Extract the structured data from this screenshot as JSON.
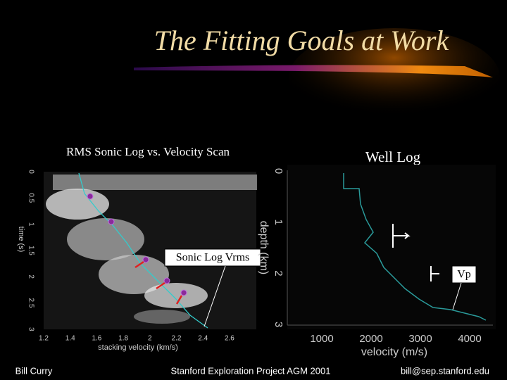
{
  "title": "The Fitting Goals at Work",
  "left_panel": {
    "caption": "RMS Sonic Log vs. Velocity Scan",
    "ylabel": "time (s)",
    "yticks": [
      "0",
      "0.5",
      "1",
      "1.5",
      "2",
      "2.5",
      "3"
    ],
    "xticks": [
      "1.2",
      "1.4",
      "1.6",
      "1.8",
      "2",
      "2.2",
      "2.4",
      "2.6"
    ],
    "xlabel": "stacking velocity (km/s)",
    "callout": "Sonic Log Vrms"
  },
  "right_panel": {
    "caption": "Well Log",
    "ylabel": "depth (km)",
    "yticks": [
      "0",
      "1",
      "2",
      "3"
    ],
    "xticks": [
      "1000",
      "2000",
      "3000",
      "4000"
    ],
    "xlabel": "velocity (m/s)",
    "callout": "Vp"
  },
  "footer": {
    "author": "Bill Curry",
    "event": "Stanford Exploration Project AGM 2001",
    "email": "bill@sep.stanford.edu"
  }
}
